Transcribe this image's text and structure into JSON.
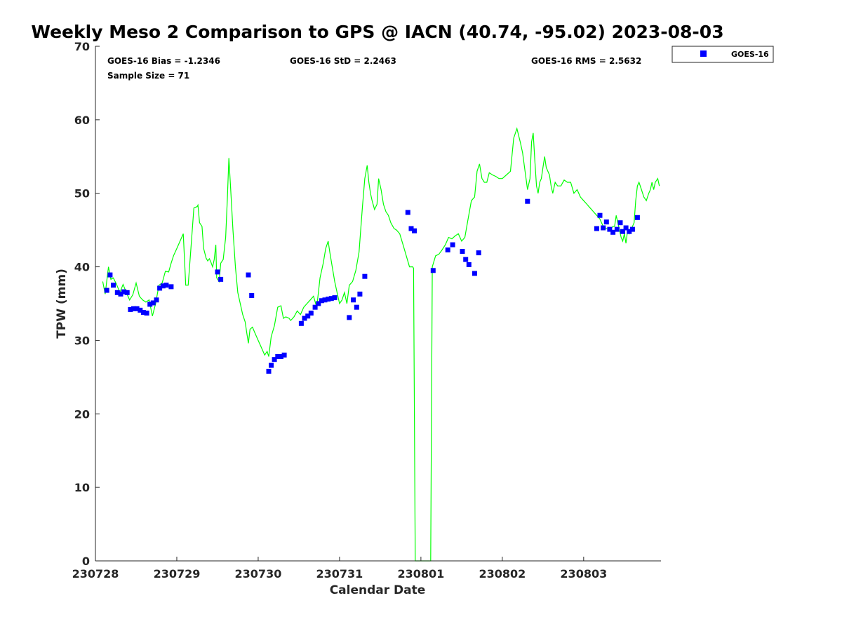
{
  "chart_data": {
    "type": "scatter",
    "title": "Weekly Meso 2 Comparison to GPS @ IACN (40.74, -95.02) 2023-08-03",
    "xlabel": "Calendar Date",
    "ylabel": "TPW (mm)",
    "x_unit": "days since 2023-07-28 00:00",
    "xlim": [
      0,
      6.95
    ],
    "ylim": [
      0,
      70
    ],
    "x_ticks": [
      {
        "value": 0,
        "label": "230728"
      },
      {
        "value": 1,
        "label": "230729"
      },
      {
        "value": 2,
        "label": "230730"
      },
      {
        "value": 3,
        "label": "230731"
      },
      {
        "value": 4,
        "label": "230801"
      },
      {
        "value": 5,
        "label": "230802"
      },
      {
        "value": 6,
        "label": "230803"
      }
    ],
    "y_ticks": [
      0,
      10,
      20,
      30,
      40,
      50,
      60,
      70
    ],
    "stats": {
      "bias": "GOES-16 Bias = -1.2346",
      "std": "GOES-16 StD = 2.2463",
      "rms": "GOES-16 RMS = 2.5632",
      "sample_size": "Sample Size = 71"
    },
    "legend": {
      "position": "top-right-outside",
      "label": "GOES-16"
    },
    "colors": {
      "gps_line": "#00ff00",
      "goes_marker": "#0000ff"
    },
    "series": [
      {
        "kind": "line",
        "color": "#00ff00",
        "points": [
          [
            0.09,
            38.0
          ],
          [
            0.12,
            36.3
          ],
          [
            0.16,
            40.0
          ],
          [
            0.19,
            38.3
          ],
          [
            0.22,
            38.5
          ],
          [
            0.26,
            37.6
          ],
          [
            0.3,
            36.5
          ],
          [
            0.34,
            37.6
          ],
          [
            0.38,
            36.5
          ],
          [
            0.42,
            35.5
          ],
          [
            0.46,
            36.2
          ],
          [
            0.5,
            37.8
          ],
          [
            0.54,
            36.0
          ],
          [
            0.58,
            35.5
          ],
          [
            0.62,
            35.2
          ],
          [
            0.66,
            35.5
          ],
          [
            0.7,
            33.3
          ],
          [
            0.74,
            35.0
          ],
          [
            0.78,
            37.5
          ],
          [
            0.82,
            37.8
          ],
          [
            0.86,
            39.4
          ],
          [
            0.9,
            39.3
          ],
          [
            0.93,
            40.5
          ],
          [
            0.96,
            41.5
          ],
          [
            1.0,
            42.5
          ],
          [
            1.04,
            43.5
          ],
          [
            1.08,
            44.5
          ],
          [
            1.11,
            37.5
          ],
          [
            1.14,
            37.5
          ],
          [
            1.17,
            42.0
          ],
          [
            1.21,
            48.0
          ],
          [
            1.25,
            48.2
          ],
          [
            1.26,
            48.4
          ],
          [
            1.28,
            46.0
          ],
          [
            1.31,
            45.5
          ],
          [
            1.33,
            42.5
          ],
          [
            1.36,
            41.2
          ],
          [
            1.38,
            40.8
          ],
          [
            1.4,
            41.1
          ],
          [
            1.42,
            40.6
          ],
          [
            1.44,
            40.0
          ],
          [
            1.46,
            41.0
          ],
          [
            1.48,
            43.0
          ],
          [
            1.49,
            38.5
          ],
          [
            1.52,
            38.0
          ],
          [
            1.54,
            40.5
          ],
          [
            1.57,
            41.0
          ],
          [
            1.6,
            44.0
          ],
          [
            1.62,
            49.0
          ],
          [
            1.64,
            54.8
          ],
          [
            1.66,
            51.0
          ],
          [
            1.69,
            45.0
          ],
          [
            1.72,
            40.0
          ],
          [
            1.75,
            36.5
          ],
          [
            1.78,
            35.0
          ],
          [
            1.81,
            33.5
          ],
          [
            1.84,
            32.5
          ],
          [
            1.86,
            31.0
          ],
          [
            1.88,
            29.6
          ],
          [
            1.9,
            31.5
          ],
          [
            1.93,
            31.8
          ],
          [
            1.96,
            31.0
          ],
          [
            2.0,
            30.0
          ],
          [
            2.04,
            29.0
          ],
          [
            2.08,
            28.0
          ],
          [
            2.11,
            28.5
          ],
          [
            2.13,
            27.8
          ],
          [
            2.16,
            30.5
          ],
          [
            2.2,
            32.0
          ],
          [
            2.24,
            34.5
          ],
          [
            2.28,
            34.7
          ],
          [
            2.31,
            33.0
          ],
          [
            2.34,
            33.2
          ],
          [
            2.38,
            33.0
          ],
          [
            2.4,
            32.7
          ],
          [
            2.44,
            33.2
          ],
          [
            2.48,
            34.0
          ],
          [
            2.52,
            33.5
          ],
          [
            2.56,
            34.5
          ],
          [
            2.6,
            35.0
          ],
          [
            2.64,
            35.5
          ],
          [
            2.68,
            36.0
          ],
          [
            2.72,
            34.5
          ],
          [
            2.76,
            38.5
          ],
          [
            2.8,
            40.5
          ],
          [
            2.83,
            42.5
          ],
          [
            2.86,
            43.5
          ],
          [
            2.88,
            42.0
          ],
          [
            2.91,
            40.0
          ],
          [
            2.94,
            38.0
          ],
          [
            2.97,
            36.5
          ],
          [
            3.0,
            35.0
          ],
          [
            3.03,
            35.5
          ],
          [
            3.06,
            36.5
          ],
          [
            3.09,
            35.0
          ],
          [
            3.12,
            37.5
          ],
          [
            3.16,
            38.0
          ],
          [
            3.2,
            39.5
          ],
          [
            3.24,
            42.0
          ],
          [
            3.28,
            48.0
          ],
          [
            3.31,
            52.0
          ],
          [
            3.34,
            53.8
          ],
          [
            3.36,
            51.5
          ],
          [
            3.38,
            50.0
          ],
          [
            3.4,
            49.0
          ],
          [
            3.43,
            47.8
          ],
          [
            3.46,
            48.5
          ],
          [
            3.48,
            52.0
          ],
          [
            3.51,
            50.5
          ],
          [
            3.54,
            48.5
          ],
          [
            3.57,
            47.5
          ],
          [
            3.6,
            47.0
          ],
          [
            3.63,
            46.0
          ],
          [
            3.67,
            45.2
          ],
          [
            3.7,
            45.0
          ],
          [
            3.74,
            44.5
          ],
          [
            3.78,
            43.0
          ],
          [
            3.82,
            41.5
          ],
          [
            3.86,
            40.0
          ],
          [
            3.9,
            40.0
          ],
          [
            3.91,
            39.8
          ],
          [
            3.93,
            0.0
          ],
          [
            4.12,
            0.0
          ],
          [
            4.14,
            40.0
          ],
          [
            4.18,
            41.5
          ],
          [
            4.22,
            41.7
          ],
          [
            4.26,
            42.3
          ],
          [
            4.3,
            43.0
          ],
          [
            4.34,
            44.0
          ],
          [
            4.38,
            43.8
          ],
          [
            4.42,
            44.2
          ],
          [
            4.46,
            44.5
          ],
          [
            4.5,
            43.5
          ],
          [
            4.54,
            44.0
          ],
          [
            4.58,
            46.5
          ],
          [
            4.62,
            49.0
          ],
          [
            4.66,
            49.5
          ],
          [
            4.69,
            53.0
          ],
          [
            4.72,
            54.0
          ],
          [
            4.75,
            52.0
          ],
          [
            4.78,
            51.5
          ],
          [
            4.81,
            51.5
          ],
          [
            4.84,
            52.8
          ],
          [
            4.88,
            52.5
          ],
          [
            4.92,
            52.3
          ],
          [
            4.96,
            52.0
          ],
          [
            5.0,
            52.0
          ],
          [
            5.05,
            52.5
          ],
          [
            5.1,
            53.0
          ],
          [
            5.14,
            57.5
          ],
          [
            5.18,
            58.8
          ],
          [
            5.22,
            57.0
          ],
          [
            5.25,
            55.5
          ],
          [
            5.28,
            53.0
          ],
          [
            5.31,
            50.5
          ],
          [
            5.34,
            52.0
          ],
          [
            5.36,
            57.0
          ],
          [
            5.38,
            58.2
          ],
          [
            5.4,
            54.5
          ],
          [
            5.42,
            51.0
          ],
          [
            5.44,
            50.0
          ],
          [
            5.46,
            51.5
          ],
          [
            5.48,
            52.0
          ],
          [
            5.5,
            53.5
          ],
          [
            5.52,
            55.0
          ],
          [
            5.54,
            53.5
          ],
          [
            5.56,
            53.0
          ],
          [
            5.58,
            52.5
          ],
          [
            5.6,
            51.0
          ],
          [
            5.62,
            50.0
          ],
          [
            5.65,
            51.5
          ],
          [
            5.68,
            51.0
          ],
          [
            5.72,
            51.0
          ],
          [
            5.76,
            51.8
          ],
          [
            5.8,
            51.5
          ],
          [
            5.84,
            51.5
          ],
          [
            5.88,
            50.0
          ],
          [
            5.92,
            50.5
          ],
          [
            5.96,
            49.5
          ],
          [
            6.0,
            49.0
          ],
          [
            6.04,
            48.5
          ],
          [
            6.08,
            48.0
          ],
          [
            6.12,
            47.5
          ],
          [
            6.16,
            47.0
          ],
          [
            6.2,
            46.5
          ],
          [
            6.22,
            46.0
          ],
          [
            6.24,
            45.5
          ],
          [
            6.28,
            45.2
          ],
          [
            6.32,
            45.0
          ],
          [
            6.36,
            45.5
          ],
          [
            6.38,
            45.5
          ],
          [
            6.4,
            47.0
          ],
          [
            6.42,
            46.0
          ],
          [
            6.44,
            45.0
          ],
          [
            6.46,
            44.0
          ],
          [
            6.48,
            43.5
          ],
          [
            6.5,
            44.5
          ],
          [
            6.52,
            43.2
          ],
          [
            6.54,
            45.0
          ],
          [
            6.56,
            44.5
          ],
          [
            6.58,
            45.0
          ],
          [
            6.6,
            45.5
          ],
          [
            6.62,
            46.0
          ],
          [
            6.64,
            49.0
          ],
          [
            6.66,
            51.0
          ],
          [
            6.68,
            51.5
          ],
          [
            6.71,
            50.5
          ],
          [
            6.74,
            49.5
          ],
          [
            6.77,
            49.0
          ],
          [
            6.8,
            50.0
          ],
          [
            6.82,
            50.5
          ],
          [
            6.84,
            51.5
          ],
          [
            6.86,
            50.5
          ],
          [
            6.88,
            51.5
          ],
          [
            6.91,
            52.0
          ],
          [
            6.93,
            51.0
          ]
        ]
      },
      {
        "name": "GOES-16",
        "kind": "scatter",
        "color": "#0000ff",
        "points": [
          [
            0.14,
            36.8
          ],
          [
            0.18,
            38.9
          ],
          [
            0.22,
            37.5
          ],
          [
            0.27,
            36.5
          ],
          [
            0.31,
            36.3
          ],
          [
            0.35,
            36.6
          ],
          [
            0.39,
            36.5
          ],
          [
            0.43,
            34.2
          ],
          [
            0.47,
            34.3
          ],
          [
            0.51,
            34.3
          ],
          [
            0.55,
            34.1
          ],
          [
            0.59,
            33.8
          ],
          [
            0.63,
            33.7
          ],
          [
            0.67,
            34.9
          ],
          [
            0.71,
            35.1
          ],
          [
            0.75,
            35.5
          ],
          [
            0.79,
            37.1
          ],
          [
            0.83,
            37.4
          ],
          [
            0.87,
            37.5
          ],
          [
            0.93,
            37.3
          ],
          [
            1.5,
            39.3
          ],
          [
            1.54,
            38.3
          ],
          [
            1.88,
            38.9
          ],
          [
            1.92,
            36.1
          ],
          [
            2.13,
            25.8
          ],
          [
            2.16,
            26.6
          ],
          [
            2.2,
            27.4
          ],
          [
            2.24,
            27.8
          ],
          [
            2.28,
            27.8
          ],
          [
            2.32,
            28.0
          ],
          [
            2.53,
            32.3
          ],
          [
            2.57,
            33.0
          ],
          [
            2.61,
            33.3
          ],
          [
            2.65,
            33.7
          ],
          [
            2.7,
            34.5
          ],
          [
            2.74,
            35.0
          ],
          [
            2.78,
            35.4
          ],
          [
            2.82,
            35.5
          ],
          [
            2.86,
            35.6
          ],
          [
            2.9,
            35.7
          ],
          [
            2.94,
            35.8
          ],
          [
            3.12,
            33.1
          ],
          [
            3.17,
            35.5
          ],
          [
            3.21,
            34.5
          ],
          [
            3.25,
            36.3
          ],
          [
            3.31,
            38.7
          ],
          [
            3.84,
            47.4
          ],
          [
            3.88,
            45.2
          ],
          [
            3.92,
            44.9
          ],
          [
            4.15,
            39.5
          ],
          [
            4.33,
            42.3
          ],
          [
            4.39,
            43.0
          ],
          [
            4.51,
            42.1
          ],
          [
            4.55,
            41.0
          ],
          [
            4.59,
            40.3
          ],
          [
            4.66,
            39.1
          ],
          [
            4.71,
            41.9
          ],
          [
            5.31,
            48.9
          ],
          [
            6.16,
            45.2
          ],
          [
            6.2,
            47.0
          ],
          [
            6.24,
            45.3
          ],
          [
            6.28,
            46.1
          ],
          [
            6.32,
            45.1
          ],
          [
            6.36,
            44.7
          ],
          [
            6.41,
            45.1
          ],
          [
            6.45,
            46.0
          ],
          [
            6.48,
            44.8
          ],
          [
            6.52,
            45.3
          ],
          [
            6.56,
            44.8
          ],
          [
            6.6,
            45.1
          ],
          [
            6.66,
            46.7
          ]
        ]
      }
    ]
  }
}
